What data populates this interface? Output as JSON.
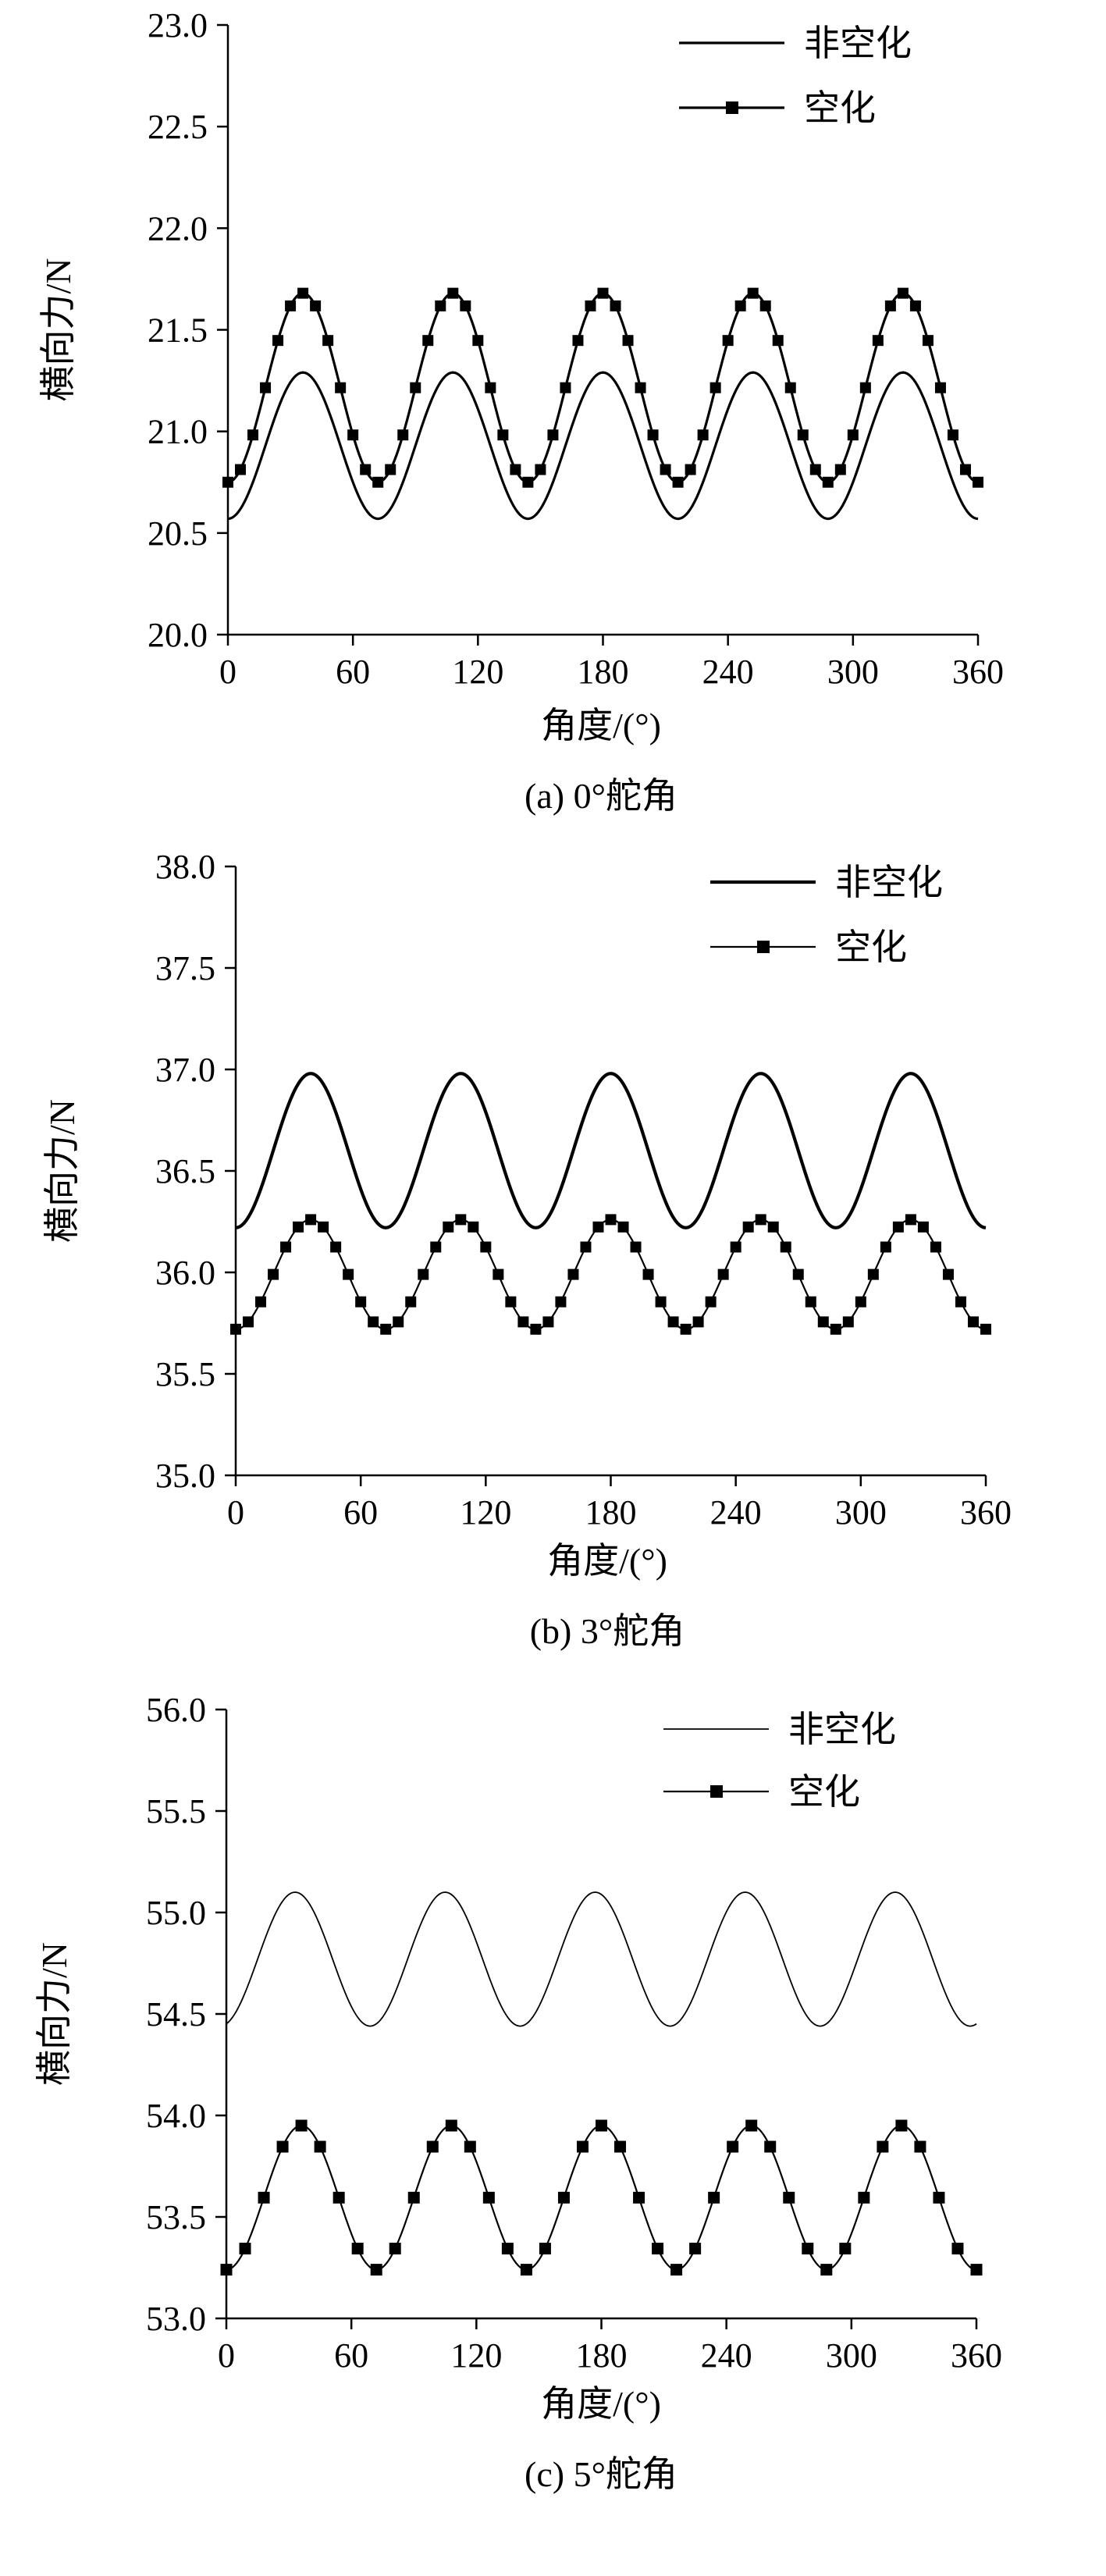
{
  "chart_data": [
    {
      "type": "line",
      "caption": "(a) 0°舵角",
      "xlabel": "角度/(°)",
      "ylabel": "横向力/N",
      "xlim": [
        0,
        360
      ],
      "ylim": [
        20.0,
        23.0
      ],
      "xticks": [
        "0",
        "60",
        "120",
        "180",
        "240",
        "300",
        "360"
      ],
      "yticks": [
        "20.0",
        "20.5",
        "21.0",
        "21.5",
        "22.0",
        "22.5",
        "23.0"
      ],
      "grid": false,
      "legend_position": "top-right",
      "series": [
        {
          "name": "非空化",
          "marker": "none",
          "mean": 20.93,
          "amplitude": 0.36,
          "min": 20.57,
          "max": 21.29,
          "period_deg": 72,
          "first_peak_deg": 36
        },
        {
          "name": "空化",
          "marker": "square",
          "mean": 21.215,
          "amplitude": 0.465,
          "min": 20.75,
          "max": 21.68,
          "period_deg": 72,
          "first_peak_deg": 36
        }
      ]
    },
    {
      "type": "line",
      "caption": "(b) 3°舵角",
      "xlabel": "角度/(°)",
      "ylabel": "横向力/N",
      "xlim": [
        0,
        360
      ],
      "ylim": [
        35.0,
        38.0
      ],
      "xticks": [
        "0",
        "60",
        "120",
        "180",
        "240",
        "300",
        "360"
      ],
      "yticks": [
        "35.0",
        "35.5",
        "36.0",
        "36.5",
        "37.0",
        "37.5",
        "38.0"
      ],
      "grid": false,
      "legend_position": "top-right",
      "series": [
        {
          "name": "非空化",
          "marker": "none",
          "mean": 36.6,
          "amplitude": 0.38,
          "min": 36.22,
          "max": 36.98,
          "period_deg": 72,
          "first_peak_deg": 36
        },
        {
          "name": "空化",
          "marker": "square",
          "mean": 35.99,
          "amplitude": 0.27,
          "min": 35.72,
          "max": 36.26,
          "period_deg": 72,
          "first_peak_deg": 36
        }
      ]
    },
    {
      "type": "line",
      "caption": "(c) 5°舵角",
      "xlabel": "角度/(°)",
      "ylabel": "横向力/N",
      "xlim": [
        0,
        360
      ],
      "ylim": [
        53.0,
        56.0
      ],
      "xticks": [
        "0",
        "60",
        "120",
        "180",
        "240",
        "300",
        "360"
      ],
      "yticks": [
        "53.0",
        "53.5",
        "54.0",
        "54.5",
        "55.0",
        "55.5",
        "56.0"
      ],
      "grid": false,
      "legend_position": "top-right",
      "series": [
        {
          "name": "非空化",
          "marker": "none",
          "mean": 54.77,
          "amplitude": 0.33,
          "min": 54.44,
          "max": 55.1,
          "period_deg": 72,
          "first_peak_deg": 33
        },
        {
          "name": "空化",
          "marker": "square",
          "mean": 53.595,
          "amplitude": 0.355,
          "min": 53.24,
          "max": 53.95,
          "period_deg": 72,
          "first_peak_deg": 36
        }
      ]
    }
  ]
}
